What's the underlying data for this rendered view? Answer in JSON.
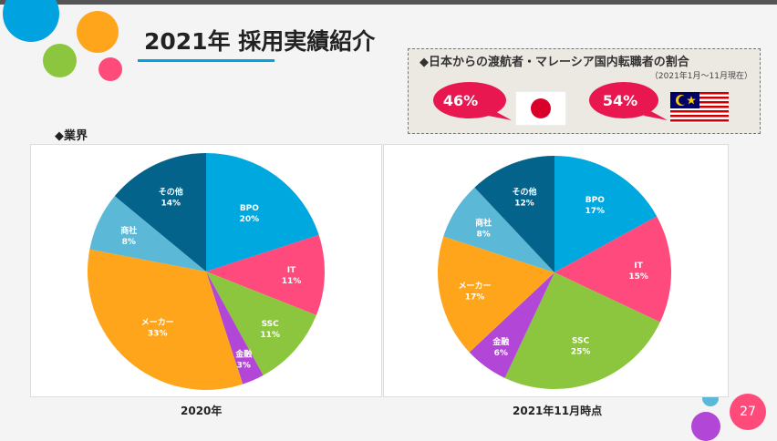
{
  "slide": {
    "title": "2021年 採用実績紹介",
    "page_number": "27",
    "section_label": "◆業界"
  },
  "callout": {
    "heading": "◆日本からの渡航者・マレーシア国内転職者の割合",
    "subheading": "（2021年1月～11月現在）",
    "japan_share": "46%",
    "malaysia_share": "54%"
  },
  "colors": {
    "accent_blue": "#00a3e0",
    "accent_pink": "#ff4b7a",
    "bubble_red": "#e8174f"
  },
  "chart_data": [
    {
      "type": "pie",
      "title": "2020年",
      "categories": [
        "BPO",
        "IT",
        "SSC",
        "金融",
        "メーカー",
        "商社",
        "その他"
      ],
      "values": [
        20,
        11,
        11,
        3,
        33,
        8,
        14
      ],
      "labels": [
        "20%",
        "11%",
        "11%",
        "3%",
        "33%",
        "8%",
        "14%"
      ],
      "colors": [
        "#00a8e0",
        "#ff4a7d",
        "#8cc63f",
        "#b246d6",
        "#ffa51c",
        "#5bb8d6",
        "#03638a"
      ]
    },
    {
      "type": "pie",
      "title": "2021年11月時点",
      "categories": [
        "BPO",
        "IT",
        "SSC",
        "金融",
        "メーカー",
        "商社",
        "その他"
      ],
      "values": [
        17,
        15,
        25,
        6,
        17,
        8,
        12
      ],
      "labels": [
        "17%",
        "15%",
        "25%",
        "6%",
        "17%",
        "8%",
        "12%"
      ],
      "colors": [
        "#00a8e0",
        "#ff4a7d",
        "#8cc63f",
        "#b246d6",
        "#ffa51c",
        "#5bb8d6",
        "#03638a"
      ]
    }
  ]
}
